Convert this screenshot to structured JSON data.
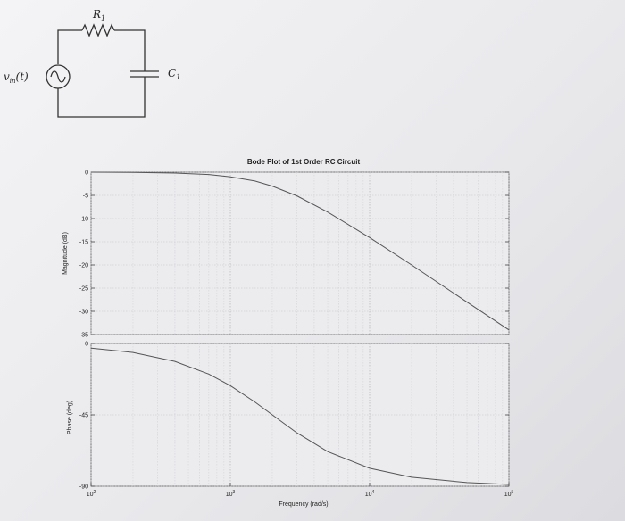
{
  "circuit": {
    "resistor_label": "R",
    "resistor_sub": "1",
    "capacitor_label": "C",
    "capacitor_sub": "1",
    "source_label": "v",
    "source_sub": "in",
    "source_arg": "(t)"
  },
  "chart_data": [
    {
      "type": "line",
      "title": "Bode Plot of 1st Order RC Circuit",
      "xlabel": "",
      "ylabel": "Magnitude (dB)",
      "xscale": "log",
      "xlim": [
        100,
        100000
      ],
      "ylim": [
        -35,
        0
      ],
      "yticks": [
        0,
        -5,
        -10,
        -15,
        -20,
        -25,
        -30,
        -35
      ],
      "grid": true,
      "series": [
        {
          "x": [
            100,
            200,
            400,
            700,
            1000,
            1500,
            2000,
            3000,
            5000,
            10000,
            20000,
            50000,
            100000
          ],
          "values": [
            0,
            -0.05,
            -0.2,
            -0.5,
            -1.0,
            -1.9,
            -3.0,
            -5.1,
            -8.6,
            -14.1,
            -20.0,
            -28.0,
            -34.0
          ]
        }
      ]
    },
    {
      "type": "line",
      "xlabel": "Frequency (rad/s)",
      "ylabel": "Phase (deg)",
      "xscale": "log",
      "xlim": [
        100,
        100000
      ],
      "ylim": [
        -90,
        0
      ],
      "yticks": [
        0,
        -45,
        -90
      ],
      "xticks": [
        100,
        1000,
        10000,
        100000
      ],
      "xtick_labels": [
        {
          "base": "10",
          "exp": "2"
        },
        {
          "base": "10",
          "exp": "3"
        },
        {
          "base": "10",
          "exp": "4"
        },
        {
          "base": "10",
          "exp": "5"
        }
      ],
      "grid": true,
      "series": [
        {
          "x": [
            100,
            200,
            400,
            700,
            1000,
            1500,
            2000,
            3000,
            5000,
            10000,
            20000,
            50000,
            100000
          ],
          "values": [
            -2.9,
            -5.7,
            -11.3,
            -19.3,
            -26.6,
            -36.9,
            -45.0,
            -56.3,
            -68.2,
            -78.7,
            -84.3,
            -87.7,
            -88.9
          ]
        }
      ]
    }
  ]
}
